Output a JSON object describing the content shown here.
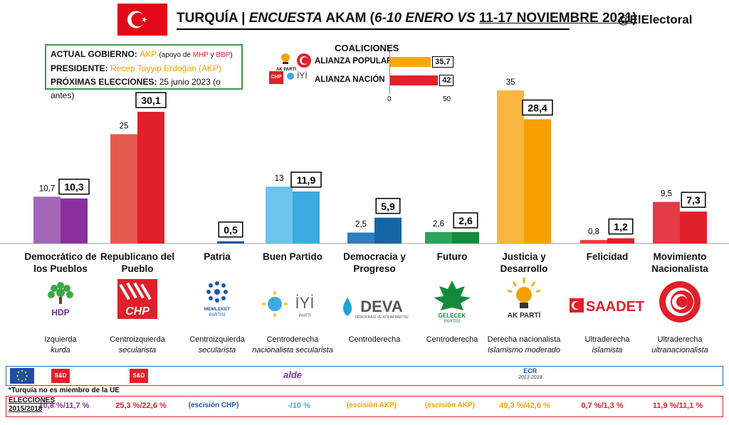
{
  "header": {
    "title_a": "TURQUÍA | ",
    "title_b": "ENCUESTA",
    "title_c": " AKAM (",
    "title_d": "6-10 ENERO VS",
    "title_e": "11-17 NOVIEMBRE 2021",
    "title_f": ")",
    "handle": "@ElElectoral"
  },
  "government": {
    "l1_label": "ACTUAL GOBIERNO:",
    "l1_party": "AKP",
    "l1_a": "(apoyo de ",
    "l1_b": "MHP",
    "l1_c": " y ",
    "l1_d": "BBP",
    "l1_e": ")",
    "l2_label": "PRESIDENTE:",
    "l2_value": "Recep Tayyip Erdoğan (AKP)",
    "l3_label": "PRÓXIMAS ELECCIONES:",
    "l3_value": "25 junio 2023 (o antes)"
  },
  "coalitions": {
    "title": "COALICIONES",
    "items": [
      {
        "label": "ALIANZA POPULAR",
        "value": "35,7",
        "num": 35.7,
        "color": "#f8a80e"
      },
      {
        "label": "ALIANZA NACIÓN",
        "value": "42",
        "num": 42,
        "color": "#e0202a"
      }
    ],
    "axis_min": "0",
    "axis_max": "50",
    "max": 50,
    "logos": {
      "akp": "AK PARTİ",
      "chp": "CHP",
      "iyi": "İYİ"
    }
  },
  "chart_data": {
    "type": "bar",
    "categories": [
      "Democrático de los Pueblos",
      "Republicano del Pueblo",
      "Patria",
      "Buen Partido",
      "Democracia y Progreso",
      "Futuro",
      "Justicia y Desarrollo",
      "Felicidad",
      "Movimiento Nacionalista"
    ],
    "series": [
      {
        "values": [
          10.7,
          25,
          null,
          13,
          2.5,
          2.6,
          35,
          0.8,
          9.5
        ],
        "labels": [
          "10,7",
          "25",
          "",
          "13",
          "2,5",
          "2,6",
          "35",
          "0,8",
          "9,5"
        ]
      },
      {
        "values": [
          10.3,
          30.1,
          0.5,
          11.9,
          5.9,
          2.6,
          28.4,
          1.2,
          7.3
        ],
        "labels": [
          "10,3",
          "30,1",
          "0,5",
          "11,9",
          "5,9",
          "2,6",
          "28,4",
          "1,2",
          "7,3"
        ]
      }
    ],
    "colors_prev": [
      "#a367b8",
      "#e55a4f",
      "#2a6cb5",
      "#6bc4ec",
      "#2e7cb8",
      "#2aa45a",
      "#f9b640",
      "#e6443f",
      "#e53a48"
    ],
    "colors_curr": [
      "#8b2fa0",
      "#e0202a",
      "#1e58a6",
      "#3aace0",
      "#1565a6",
      "#148a3c",
      "#f7a000",
      "#e0202a",
      "#e0202a"
    ],
    "ylim": [
      0,
      35
    ]
  },
  "parties": [
    {
      "name": "Democrático de los Pueblos",
      "logo": "HDP",
      "ideo1": "Izquierda",
      "ideo2": "kurda",
      "ideo2_italic": true,
      "election": "10,8 %/11,7 %",
      "el_color": "#8b2fa0"
    },
    {
      "name": "Republicano del Pueblo",
      "logo": "CHP",
      "ideo1": "Centroizquierda",
      "ideo2": "secularista",
      "ideo2_italic": true,
      "election": "25,3 %/22,6 %",
      "el_color": "#e0202a"
    },
    {
      "name": "Patria",
      "logo": "MEMLEKET PARTİSİ",
      "ideo1": "Centroizquierda",
      "ideo2": "secularista",
      "ideo2_italic": true,
      "election": "(escisión CHP)",
      "el_color": "#1e58a6"
    },
    {
      "name": "Buen Partido",
      "logo": "İYİ",
      "ideo1": "Centroderecha",
      "ideo2": "nacionalista secularista",
      "ideo2_italic": true,
      "election": "-/10 %",
      "el_color": "#3aace0"
    },
    {
      "name": "Democracia y Progreso",
      "logo": "DEVA",
      "ideo1": "Centroderecha",
      "ideo2": "",
      "ideo2_italic": false,
      "election": "(escisión AKP)",
      "el_color": "#f5a000"
    },
    {
      "name": "Futuro",
      "logo": "GELECEK PARTİSİ",
      "ideo1": "Centroderecha",
      "ideo2": "",
      "ideo2_italic": false,
      "election": "(escisión AKP)",
      "el_color": "#f5a000"
    },
    {
      "name": "Justicia y Desarrollo",
      "logo": "AK PARTİ",
      "ideo1": "Derecha nacionalista",
      "ideo2": "Islamismo moderado",
      "ideo2_italic": true,
      "election": "49,3 %/42,6 %",
      "el_color": "#f5a000"
    },
    {
      "name": "Felicidad",
      "logo": "SAADET",
      "ideo1": "Ultraderecha",
      "ideo2": "islamista",
      "ideo2_italic": true,
      "election": "0,7 %/1,3 %",
      "el_color": "#e0202a"
    },
    {
      "name": "Movimiento Nacionalista",
      "logo": "MHP",
      "ideo1": "Ultraderecha",
      "ideo2": "ultranacionalista",
      "ideo2_italic": true,
      "election": "11,9 %/11,1 %",
      "el_color": "#e0202a"
    }
  ],
  "ep_groups": {
    "sd1": "S&D",
    "sd2": "S&D",
    "alde": "alde",
    "ecr": "ECR",
    "ecr_note": "2013-2018"
  },
  "note": "*Turquía no es miembro de la UE",
  "elections_label_1": "ELECCIONES",
  "elections_label_2": "2015/2018"
}
